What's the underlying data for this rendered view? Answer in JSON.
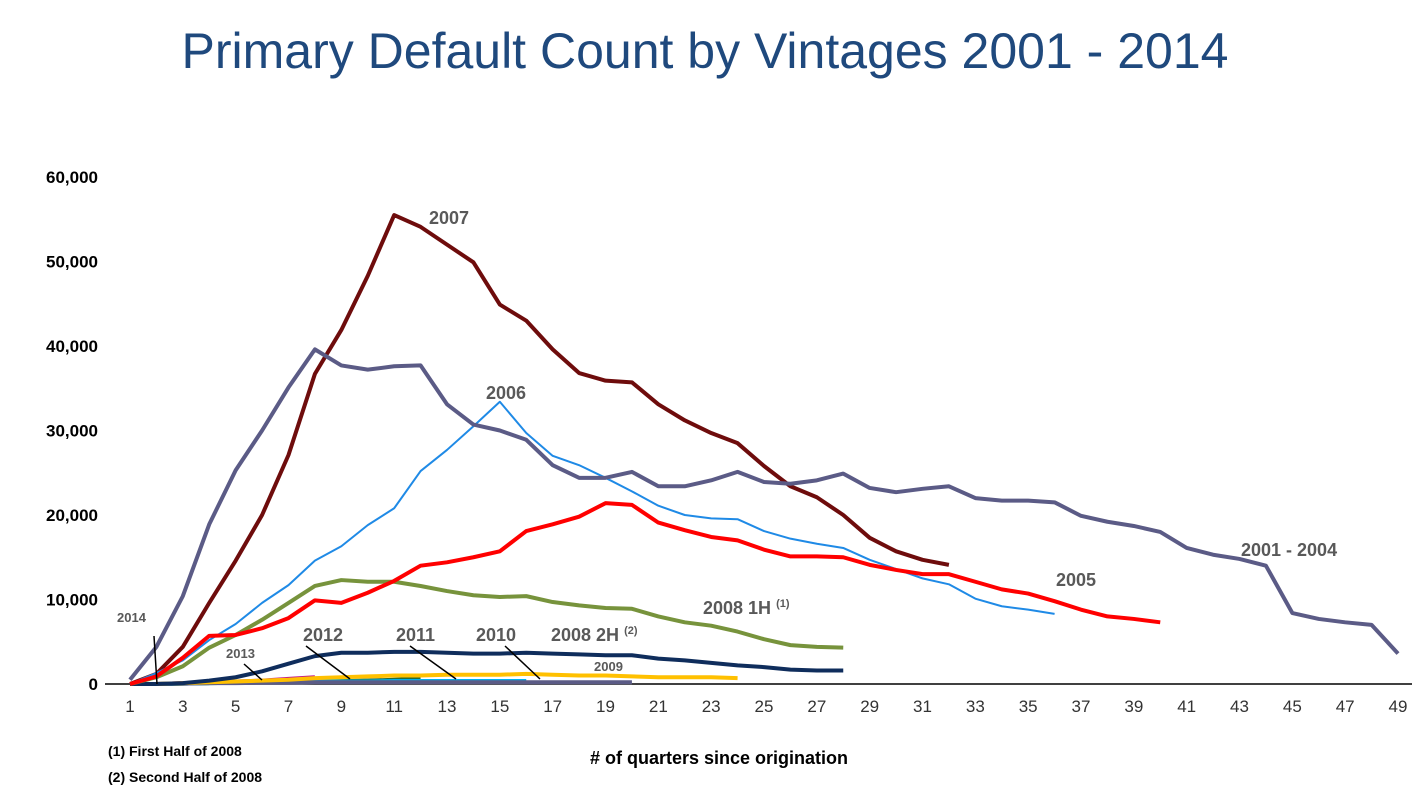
{
  "chart_data": {
    "type": "line",
    "title": "Primary Default Count by Vintages 2001 - 2014",
    "xlabel": "# of quarters since origination",
    "ylabel": "",
    "xlim": [
      1,
      49
    ],
    "ylim": [
      0,
      60000
    ],
    "yticks": [
      0,
      10000,
      20000,
      30000,
      40000,
      50000,
      60000
    ],
    "ytick_labels": [
      "0",
      "10,000",
      "20,000",
      "30,000",
      "40,000",
      "50,000",
      "60,000"
    ],
    "xticks": [
      1,
      3,
      5,
      7,
      9,
      11,
      13,
      15,
      17,
      19,
      21,
      23,
      25,
      27,
      29,
      31,
      33,
      35,
      37,
      39,
      41,
      43,
      45,
      47,
      49
    ],
    "grid": false,
    "series": [
      {
        "name": "2001 - 2004",
        "color": "#5b5b86",
        "width": 4,
        "values": [
          500,
          4400,
          10400,
          18900,
          25300,
          30000,
          35100,
          39600,
          37700,
          37200,
          37600,
          37700,
          33100,
          30700,
          30000,
          28900,
          25900,
          24400,
          24400,
          25100,
          23400,
          23400,
          24100,
          25100,
          23900,
          23700,
          24100,
          24900,
          23200,
          22700,
          23100,
          23400,
          22000,
          21700,
          21700,
          21500,
          19900,
          19200,
          18700,
          18000,
          16100,
          15300,
          14800,
          14000,
          8400,
          7700,
          7300,
          7000,
          3600
        ]
      },
      {
        "name": "2005",
        "color": "#ff0000",
        "width": 4,
        "values": [
          0,
          900,
          3100,
          5700,
          5800,
          6600,
          7800,
          9900,
          9600,
          10800,
          12200,
          14000,
          14400,
          15000,
          15700,
          18100,
          18900,
          19800,
          21400,
          21200,
          19100,
          18200,
          17400,
          17000,
          15900,
          15100,
          15100,
          15000,
          14100,
          13500,
          13000,
          13000,
          12100,
          11200,
          10700,
          9800,
          8800,
          8000,
          7700,
          7300
        ]
      },
      {
        "name": "2006",
        "color": "#1f8ae6",
        "width": 2,
        "values": [
          0,
          1300,
          2800,
          5200,
          7100,
          9600,
          11700,
          14600,
          16300,
          18800,
          20800,
          25200,
          27700,
          30500,
          33400,
          29700,
          27000,
          25900,
          24400,
          22800,
          21100,
          20000,
          19600,
          19500,
          18100,
          17200,
          16600,
          16100,
          14700,
          13600,
          12500,
          11800,
          10100,
          9200,
          8800,
          8300
        ]
      },
      {
        "name": "2007",
        "color": "#6e0c0c",
        "width": 4,
        "values": [
          0,
          1200,
          4400,
          9600,
          14600,
          20000,
          27100,
          36700,
          41900,
          48300,
          55500,
          54100,
          52000,
          49900,
          44900,
          43000,
          39600,
          36800,
          35900,
          35700,
          33100,
          31200,
          29700,
          28500,
          25800,
          23400,
          22100,
          20000,
          17300,
          15700,
          14700,
          14100
        ]
      },
      {
        "name": "2008 1H",
        "sup": "(1)",
        "color": "#77933c",
        "width": 4,
        "values": [
          0,
          800,
          2100,
          4300,
          5800,
          7600,
          9600,
          11600,
          12300,
          12100,
          12100,
          11600,
          11000,
          10500,
          10300,
          10400,
          9700,
          9300,
          9000,
          8900,
          8000,
          7300,
          6900,
          6200,
          5300,
          4600,
          4400,
          4300
        ]
      },
      {
        "name": "2008 2H",
        "sup": "(2)",
        "color": "#0f2d5c",
        "width": 4,
        "values": [
          0,
          0,
          100,
          400,
          800,
          1500,
          2400,
          3300,
          3700,
          3700,
          3800,
          3800,
          3700,
          3600,
          3600,
          3700,
          3600,
          3500,
          3400,
          3400,
          3000,
          2800,
          2500,
          2200,
          2000,
          1700,
          1600,
          1600
        ]
      },
      {
        "name": "2009",
        "color": "#ffc000",
        "width": 4,
        "values": [
          0,
          0,
          100,
          200,
          300,
          400,
          500,
          700,
          800,
          900,
          1000,
          1000,
          1100,
          1100,
          1100,
          1200,
          1100,
          1000,
          1000,
          900,
          800,
          800,
          800,
          700
        ]
      },
      {
        "name": "2010",
        "color": "#5b5b86",
        "width": 4,
        "values": [
          0,
          0,
          50,
          100,
          100,
          150,
          150,
          200,
          200,
          200,
          200,
          200,
          200,
          200,
          200,
          200,
          200,
          200,
          200,
          200
        ]
      },
      {
        "name": "2011",
        "color": "#00b0f0",
        "width": 4,
        "values": [
          0,
          0,
          50,
          100,
          150,
          200,
          250,
          300,
          300,
          300,
          350,
          350,
          350,
          350,
          350,
          350
        ]
      },
      {
        "name": "2012",
        "color": "#2e6b2e",
        "width": 4,
        "values": [
          0,
          0,
          50,
          100,
          150,
          200,
          250,
          300,
          350,
          400,
          500,
          600
        ]
      },
      {
        "name": "2013",
        "color": "#c0158c",
        "width": 4,
        "values": [
          0,
          0,
          100,
          200,
          300,
          400,
          600,
          800
        ]
      },
      {
        "name": "2014",
        "color": "#5b5b86",
        "width": 4,
        "values": [
          0,
          0,
          50,
          100
        ]
      }
    ],
    "footnotes": [
      "(1)  First Half of 2008",
      "(2)  Second Half of 2008"
    ]
  }
}
